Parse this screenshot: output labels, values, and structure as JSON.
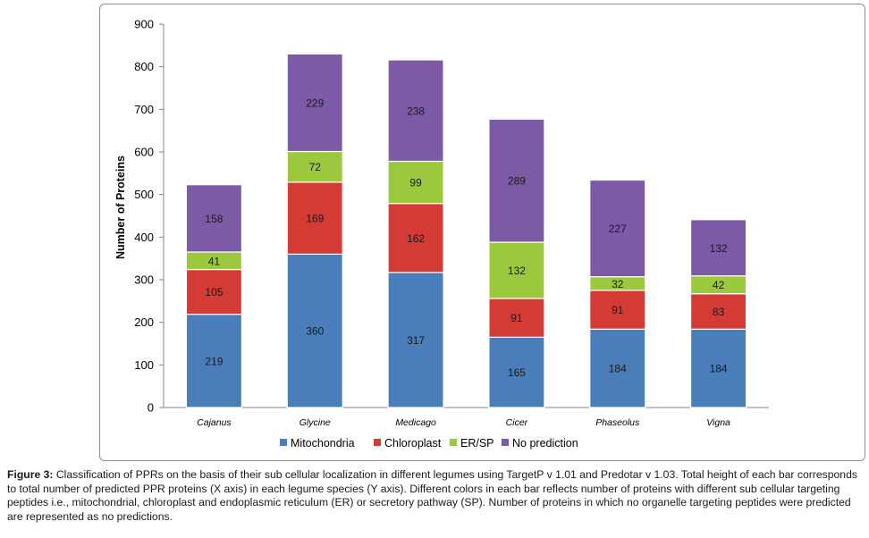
{
  "chart_data": {
    "type": "bar",
    "stacked": true,
    "ylabel": "Number of Proteins",
    "xlabel": "",
    "ylim": [
      0,
      900
    ],
    "yticks": [
      0,
      100,
      200,
      300,
      400,
      500,
      600,
      700,
      800,
      900
    ],
    "grid": false,
    "legend_position": "bottom",
    "categories": [
      "Cajanus",
      "Glycine",
      "Medicago",
      "Cicer",
      "Phaseolus",
      "Vigna"
    ],
    "series": [
      {
        "name": "Mitochondria",
        "color": "#4a7ebb",
        "values": [
          219,
          360,
          317,
          165,
          184,
          184
        ]
      },
      {
        "name": "Chloroplast",
        "color": "#d43b35",
        "values": [
          105,
          169,
          162,
          91,
          91,
          83
        ]
      },
      {
        "name": "ER/SP",
        "color": "#9bc83c",
        "values": [
          41,
          72,
          99,
          132,
          32,
          42
        ]
      },
      {
        "name": "No prediction",
        "color": "#7c5aa6",
        "values": [
          158,
          229,
          238,
          289,
          227,
          132
        ]
      }
    ]
  },
  "caption": {
    "label": "Figure 3:",
    "text": "Classification of PPRs on the basis of their sub cellular localization in different legumes using TargetP v 1.01 and Predotar v 1.03. Total height of each bar corresponds to total number of predicted PPR proteins (X axis) in each legume species (Y axis). Different colors in each bar reflects number of proteins with different sub cellular targeting peptides i.e., mitochondrial, chloroplast and endoplasmic reticulum (ER) or secretory pathway (SP). Number of proteins in which no organelle targeting peptides were predicted are represented as no predictions."
  }
}
